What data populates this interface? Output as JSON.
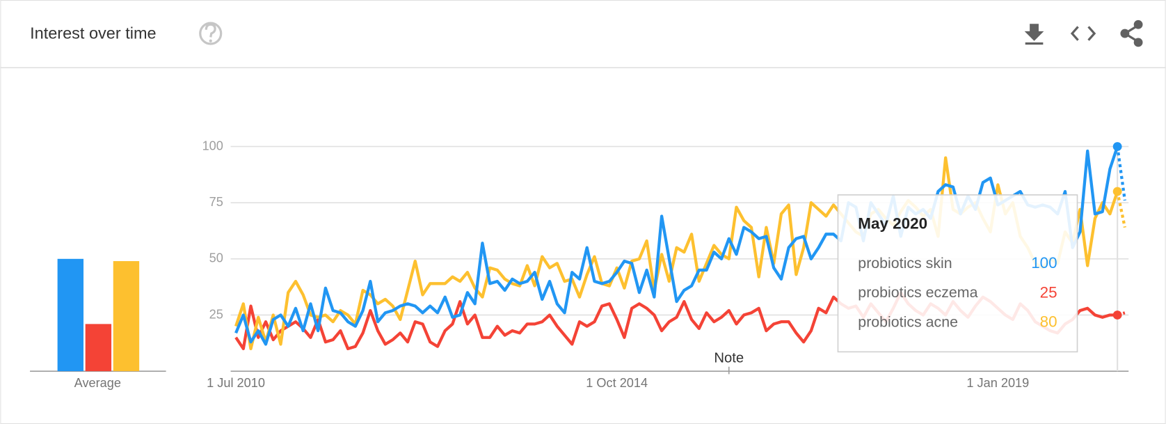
{
  "chart_data": {
    "type": "line",
    "title": "Interest over time",
    "x": [
      "Jul 2010",
      "Aug 2010",
      "Sep 2010",
      "Oct 2010",
      "Nov 2010",
      "Dec 2010",
      "Jan 2011",
      "Feb 2011",
      "Mar 2011",
      "Apr 2011",
      "May 2011",
      "Jun 2011",
      "Jul 2011",
      "Aug 2011",
      "Sep 2011",
      "Oct 2011",
      "Nov 2011",
      "Dec 2011",
      "Jan 2012",
      "Feb 2012",
      "Mar 2012",
      "Apr 2012",
      "May 2012",
      "Jun 2012",
      "Jul 2012",
      "Aug 2012",
      "Sep 2012",
      "Oct 2012",
      "Nov 2012",
      "Dec 2012",
      "Jan 2013",
      "Feb 2013",
      "Mar 2013",
      "Apr 2013",
      "May 2013",
      "Jun 2013",
      "Jul 2013",
      "Aug 2013",
      "Sep 2013",
      "Oct 2013",
      "Nov 2013",
      "Dec 2013",
      "Jan 2014",
      "Feb 2014",
      "Mar 2014",
      "Apr 2014",
      "May 2014",
      "Jun 2014",
      "Jul 2014",
      "Aug 2014",
      "Sep 2014",
      "Oct 2014",
      "Nov 2014",
      "Dec 2014",
      "Jan 2015",
      "Feb 2015",
      "Mar 2015",
      "Apr 2015",
      "May 2015",
      "Jun 2015",
      "Jul 2015",
      "Aug 2015",
      "Sep 2015",
      "Oct 2015",
      "Nov 2015",
      "Dec 2015",
      "Jan 2016",
      "Feb 2016",
      "Mar 2016",
      "Apr 2016",
      "May 2016",
      "Jun 2016",
      "Jul 2016",
      "Aug 2016",
      "Sep 2016",
      "Oct 2016",
      "Nov 2016",
      "Dec 2016",
      "Jan 2017",
      "Feb 2017",
      "Mar 2017",
      "Apr 2017",
      "May 2017",
      "Jun 2017",
      "Jul 2017",
      "Aug 2017",
      "Sep 2017",
      "Oct 2017",
      "Nov 2017",
      "Dec 2017",
      "Jan 2018",
      "Feb 2018",
      "Mar 2018",
      "Apr 2018",
      "May 2018",
      "Jun 2018",
      "Jul 2018",
      "Aug 2018",
      "Sep 2018",
      "Oct 2018",
      "Nov 2018",
      "Dec 2018",
      "Jan 2019",
      "Feb 2019",
      "Mar 2019",
      "Apr 2019",
      "May 2019",
      "Jun 2019",
      "Jul 2019",
      "Aug 2019",
      "Sep 2019",
      "Oct 2019",
      "Nov 2019",
      "Dec 2019",
      "Jan 2020",
      "Feb 2020",
      "Mar 2020",
      "Apr 2020",
      "May 2020",
      "Jun 2020"
    ],
    "series": [
      {
        "name": "probiotics skin",
        "color": "#2196f3",
        "average": 50,
        "values": [
          17,
          25,
          13,
          18,
          12,
          23,
          25,
          20,
          28,
          18,
          30,
          18,
          37,
          27,
          26,
          22,
          20,
          27,
          40,
          22,
          26,
          27,
          29,
          30,
          29,
          26,
          29,
          26,
          33,
          24,
          25,
          35,
          30,
          57,
          39,
          40,
          36,
          41,
          39,
          40,
          44,
          32,
          40,
          30,
          26,
          44,
          41,
          55,
          40,
          39,
          40,
          44,
          49,
          48,
          35,
          45,
          33,
          69,
          50,
          31,
          36,
          38,
          45,
          45,
          53,
          50,
          59,
          52,
          64,
          62,
          59,
          60,
          46,
          41,
          55,
          59,
          60,
          50,
          55,
          61,
          61,
          58,
          75,
          73,
          58,
          75,
          70,
          65,
          78,
          60,
          73,
          70,
          72,
          68,
          80,
          83,
          82,
          70,
          78,
          72,
          84,
          86,
          74,
          76,
          78,
          80,
          74,
          73,
          74,
          73,
          70,
          80,
          55,
          62,
          98,
          70,
          71,
          90,
          100,
          76
        ]
      },
      {
        "name": "probiotics eczema",
        "color": "#f44336",
        "average": 21,
        "values": [
          15,
          10,
          29,
          15,
          22,
          14,
          18,
          20,
          22,
          19,
          15,
          23,
          13,
          14,
          18,
          10,
          11,
          17,
          27,
          18,
          12,
          14,
          17,
          13,
          22,
          21,
          13,
          11,
          18,
          21,
          31,
          21,
          25,
          15,
          15,
          20,
          16,
          18,
          17,
          21,
          21,
          22,
          25,
          20,
          16,
          12,
          22,
          20,
          22,
          29,
          30,
          23,
          15,
          28,
          30,
          28,
          25,
          18,
          22,
          24,
          31,
          23,
          19,
          26,
          22,
          24,
          27,
          21,
          25,
          26,
          28,
          18,
          21,
          22,
          22,
          17,
          13,
          18,
          28,
          26,
          33,
          30,
          28,
          29,
          24,
          30,
          26,
          22,
          28,
          35,
          30,
          27,
          25,
          30,
          28,
          25,
          31,
          27,
          24,
          29,
          33,
          31,
          28,
          25,
          23,
          30,
          27,
          22,
          20,
          18,
          17,
          21,
          23,
          27,
          28,
          25,
          24,
          25,
          25,
          26
        ]
      },
      {
        "name": "probiotics acne",
        "color": "#fdc02f",
        "average": 49,
        "values": [
          20,
          30,
          10,
          24,
          13,
          25,
          12,
          35,
          40,
          34,
          25,
          24,
          25,
          22,
          27,
          25,
          21,
          36,
          34,
          30,
          32,
          29,
          23,
          36,
          49,
          34,
          39,
          39,
          39,
          42,
          40,
          44,
          37,
          33,
          46,
          45,
          41,
          39,
          38,
          47,
          38,
          51,
          46,
          48,
          40,
          41,
          33,
          43,
          51,
          39,
          38,
          46,
          37,
          49,
          50,
          58,
          36,
          52,
          40,
          55,
          53,
          61,
          40,
          48,
          56,
          52,
          50,
          73,
          67,
          64,
          42,
          64,
          48,
          70,
          74,
          43,
          55,
          75,
          72,
          69,
          74,
          70,
          66,
          62,
          60,
          70,
          72,
          68,
          65,
          71,
          76,
          73,
          69,
          72,
          60,
          95,
          72,
          70,
          73,
          75,
          68,
          62,
          83,
          70,
          75,
          60,
          55,
          48,
          46,
          50,
          48,
          62,
          57,
          72,
          47,
          68,
          75,
          70,
          80,
          64
        ]
      }
    ],
    "average_label": "Average",
    "ylim": [
      0,
      100
    ],
    "yticks": [
      25,
      50,
      75,
      100
    ],
    "xticks": [
      {
        "value": "Jul 2010",
        "label": "1 Jul 2010"
      },
      {
        "value": "Oct 2014",
        "label": "1 Oct 2014"
      },
      {
        "value": "Jan 2019",
        "label": "1 Jan 2019"
      }
    ],
    "grid": true,
    "annotation": {
      "x": "Jan 2016",
      "label": "Note"
    },
    "tooltip": {
      "x": "May 2020"
    }
  }
}
